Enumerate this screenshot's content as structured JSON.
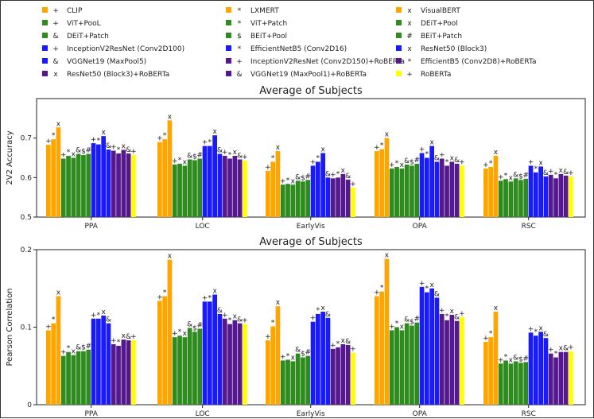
{
  "colors": {
    "orange": "#ffa500",
    "green": "#2e8b1e",
    "blue": "#1a1aff",
    "purple": "#55188f",
    "yellow": "#ffff00"
  },
  "legend": [
    {
      "marker": "+",
      "label": "CLIP",
      "color": "#ffa500"
    },
    {
      "marker": "*",
      "label": "LXMERT",
      "color": "#ffa500"
    },
    {
      "marker": "x",
      "label": "VisualBERT",
      "color": "#ffa500"
    },
    {
      "marker": "+",
      "label": "ViT+PooL",
      "color": "#2e8b1e"
    },
    {
      "marker": "*",
      "label": "ViT+Patch",
      "color": "#2e8b1e"
    },
    {
      "marker": "x",
      "label": "DEiT+Pool",
      "color": "#2e8b1e"
    },
    {
      "marker": "&",
      "label": "DEiT+Patch",
      "color": "#2e8b1e"
    },
    {
      "marker": "$",
      "label": "BEiT+Pool",
      "color": "#2e8b1e"
    },
    {
      "marker": "#",
      "label": "BEiT+Patch",
      "color": "#2e8b1e"
    },
    {
      "marker": "+",
      "label": "InceptionV2ResNet (Conv2D100)",
      "color": "#1a1aff"
    },
    {
      "marker": "*",
      "label": "EfficientNetB5 (Conv2D16)",
      "color": "#1a1aff"
    },
    {
      "marker": "x",
      "label": "ResNet50 (Block3)",
      "color": "#1a1aff"
    },
    {
      "marker": "&",
      "label": "VGGNet19 (MaxPool5)",
      "color": "#1a1aff"
    },
    {
      "marker": "+",
      "label": "InceptionV2ResNet (Conv2D150)+RoBERTa",
      "color": "#55188f"
    },
    {
      "marker": "*",
      "label": "EfficientB5 (Conv2D8)+RoBERTa",
      "color": "#55188f"
    },
    {
      "marker": "x",
      "label": "ResNet50 (Block3)+RoBERTa",
      "color": "#55188f"
    },
    {
      "marker": "&",
      "label": "VGGNet19 (MaxPool1)+RoBERTa",
      "color": "#55188f"
    },
    {
      "marker": "+",
      "label": "RoBERTa",
      "color": "#ffff00"
    }
  ],
  "bar_markers": [
    "+",
    "*",
    "x",
    "+",
    "*",
    "x",
    "&",
    "$",
    "#",
    "+",
    "*",
    "x",
    "&",
    "+",
    "*",
    "x",
    "&",
    "+"
  ],
  "bar_colors": [
    "#ffa500",
    "#ffa500",
    "#ffa500",
    "#2e8b1e",
    "#2e8b1e",
    "#2e8b1e",
    "#2e8b1e",
    "#2e8b1e",
    "#2e8b1e",
    "#1a1aff",
    "#1a1aff",
    "#1a1aff",
    "#1a1aff",
    "#55188f",
    "#55188f",
    "#55188f",
    "#55188f",
    "#ffff00"
  ],
  "chart_data": [
    {
      "type": "bar",
      "title": "Average of Subjects",
      "ylabel": "2V2 Accuracy",
      "xlabel": "",
      "ylim": [
        0.5,
        0.8
      ],
      "yticks": [
        0.5,
        0.6,
        0.7
      ],
      "ytick_labels": [
        "0.5",
        "0.6",
        "0.7"
      ],
      "categories": [
        "PPA",
        "LOC",
        "EarlyVis",
        "OPA",
        "RSC"
      ],
      "values": [
        [
          0.683,
          0.697,
          0.727,
          0.648,
          0.655,
          0.65,
          0.66,
          0.657,
          0.66,
          0.687,
          0.684,
          0.705,
          0.671,
          0.668,
          0.661,
          0.67,
          0.661,
          0.657
        ],
        [
          0.69,
          0.697,
          0.745,
          0.633,
          0.635,
          0.63,
          0.646,
          0.644,
          0.648,
          0.68,
          0.68,
          0.707,
          0.66,
          0.655,
          0.648,
          0.655,
          0.646,
          0.643
        ],
        [
          0.617,
          0.64,
          0.667,
          0.582,
          0.584,
          0.582,
          0.592,
          0.59,
          0.594,
          0.63,
          0.64,
          0.662,
          0.6,
          0.598,
          0.6,
          0.609,
          0.595,
          0.575
        ],
        [
          0.667,
          0.672,
          0.7,
          0.623,
          0.627,
          0.623,
          0.633,
          0.63,
          0.635,
          0.662,
          0.65,
          0.68,
          0.64,
          0.648,
          0.63,
          0.64,
          0.635,
          0.63
        ],
        [
          0.623,
          0.627,
          0.655,
          0.592,
          0.596,
          0.59,
          0.598,
          0.594,
          0.597,
          0.63,
          0.613,
          0.628,
          0.603,
          0.607,
          0.598,
          0.609,
          0.605,
          0.603
        ]
      ]
    },
    {
      "type": "bar",
      "title": "Average of Subjects",
      "ylabel": "Pearson Correlation",
      "xlabel": "",
      "ylim": [
        0,
        0.2
      ],
      "yticks": [
        0,
        0.1,
        0.2
      ],
      "ytick_labels": [
        "0",
        "0.1",
        "0.2"
      ],
      "categories": [
        "PPA",
        "LOC",
        "EarlyVis",
        "OPA",
        "RSC"
      ],
      "values": [
        [
          0.096,
          0.105,
          0.14,
          0.063,
          0.068,
          0.064,
          0.069,
          0.069,
          0.071,
          0.111,
          0.111,
          0.115,
          0.105,
          0.078,
          0.076,
          0.084,
          0.083,
          0.083
        ],
        [
          0.134,
          0.14,
          0.187,
          0.087,
          0.089,
          0.087,
          0.099,
          0.094,
          0.098,
          0.133,
          0.133,
          0.142,
          0.117,
          0.111,
          0.104,
          0.109,
          0.105,
          0.104
        ],
        [
          0.083,
          0.101,
          0.127,
          0.057,
          0.058,
          0.056,
          0.066,
          0.061,
          0.063,
          0.107,
          0.117,
          0.12,
          0.112,
          0.072,
          0.074,
          0.078,
          0.077,
          0.067
        ],
        [
          0.14,
          0.146,
          0.188,
          0.096,
          0.1,
          0.096,
          0.105,
          0.102,
          0.106,
          0.152,
          0.145,
          0.15,
          0.138,
          0.117,
          0.109,
          0.116,
          0.108,
          0.113
        ],
        [
          0.081,
          0.087,
          0.12,
          0.053,
          0.057,
          0.053,
          0.056,
          0.054,
          0.055,
          0.093,
          0.089,
          0.094,
          0.086,
          0.066,
          0.061,
          0.068,
          0.068,
          0.069
        ]
      ]
    }
  ]
}
